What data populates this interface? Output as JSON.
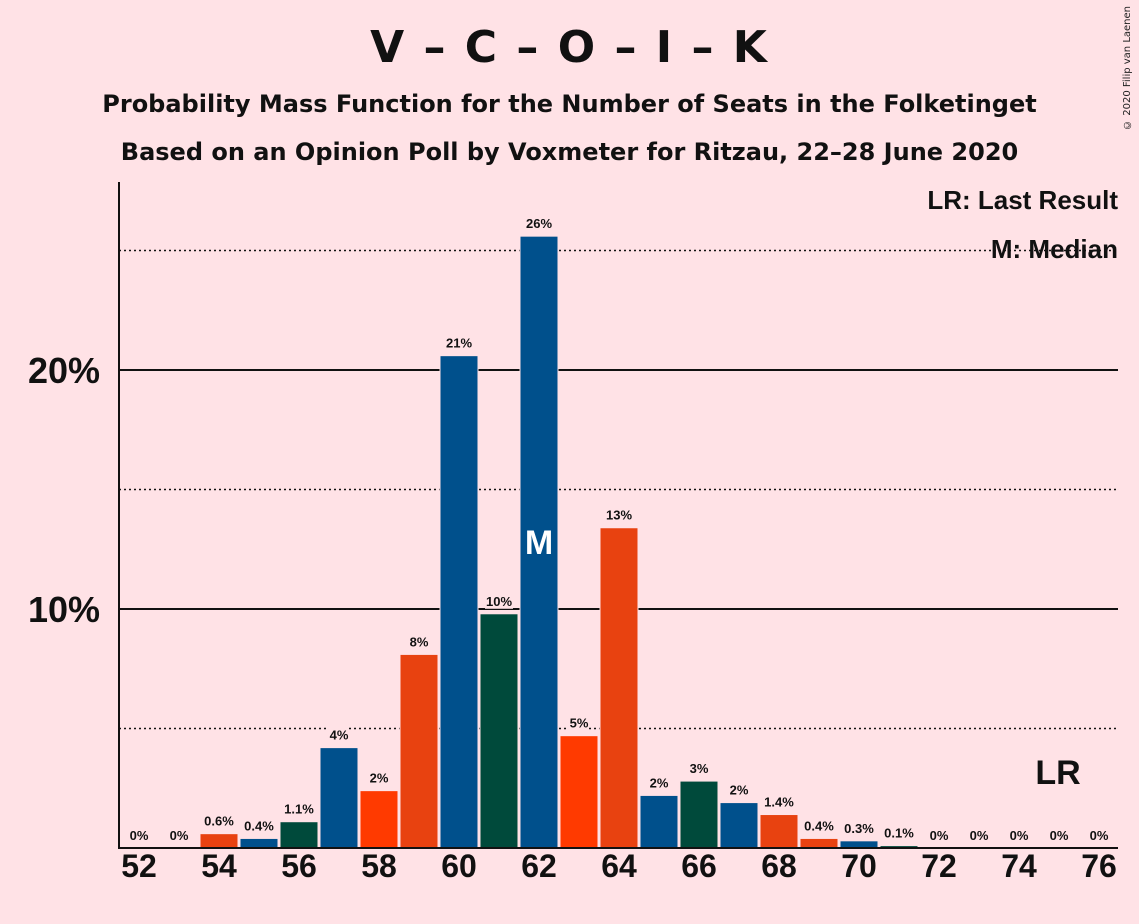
{
  "header": {
    "title": "V – C – O – I – K",
    "subtitle_1": "Probability Mass Function for the Number of Seats in the Folketinget",
    "subtitle_2": "Based on an Opinion Poll by Voxmeter for Ritzau, 22–28 June 2020",
    "copyright": "© 2020 Filip van Laenen"
  },
  "legend": {
    "last_result": "LR: Last Result",
    "median": "M: Median"
  },
  "markers": {
    "median_label": "M",
    "median_seat": 62,
    "last_result_label": "LR",
    "last_result_seat": 75
  },
  "colors": {
    "background": "#ffe2e6",
    "blue": "#00508c",
    "green": "#004a3b",
    "red": "#e84210",
    "orange_red": "#ff3a00"
  },
  "chart_data": {
    "type": "bar",
    "x": [
      52,
      53,
      54,
      55,
      56,
      57,
      58,
      59,
      60,
      61,
      62,
      63,
      64,
      65,
      66,
      67,
      68,
      69,
      70,
      71,
      72,
      73,
      74,
      75,
      76
    ],
    "values": [
      0,
      0,
      0.6,
      0.4,
      1.1,
      4.2,
      2.4,
      8.1,
      20.6,
      9.8,
      25.6,
      4.7,
      13.4,
      2.2,
      2.8,
      1.9,
      1.4,
      0.4,
      0.3,
      0.1,
      0,
      0,
      0,
      0,
      0
    ],
    "labels": [
      "0%",
      "0%",
      "0.6%",
      "0.4%",
      "1.1%",
      "4%",
      "2%",
      "8%",
      "21%",
      "10%",
      "26%",
      "5%",
      "13%",
      "2%",
      "3%",
      "2%",
      "1.4%",
      "0.4%",
      "0.3%",
      "0.1%",
      "0%",
      "0%",
      "0%",
      "0%",
      "0%"
    ],
    "bar_colors": [
      "#00508c",
      "#004a3b",
      "#e84210",
      "#00508c",
      "#004a3b",
      "#00508c",
      "#ff3a00",
      "#e84210",
      "#00508c",
      "#004a3b",
      "#00508c",
      "#ff3a00",
      "#e84210",
      "#00508c",
      "#004a3b",
      "#00508c",
      "#e84210",
      "#e84210",
      "#00508c",
      "#004a3b",
      "#00508c",
      "#004a3b",
      "#00508c",
      "#004a3b",
      "#00508c"
    ],
    "x_ticks": [
      "52",
      "54",
      "56",
      "58",
      "60",
      "62",
      "64",
      "66",
      "68",
      "70",
      "72",
      "74",
      "76"
    ],
    "y_ticks": [
      "10%",
      "20%"
    ],
    "ylim": [
      0,
      27.5
    ],
    "grid": {
      "solid": [
        10,
        20
      ],
      "dotted": [
        5,
        15,
        25
      ]
    }
  }
}
